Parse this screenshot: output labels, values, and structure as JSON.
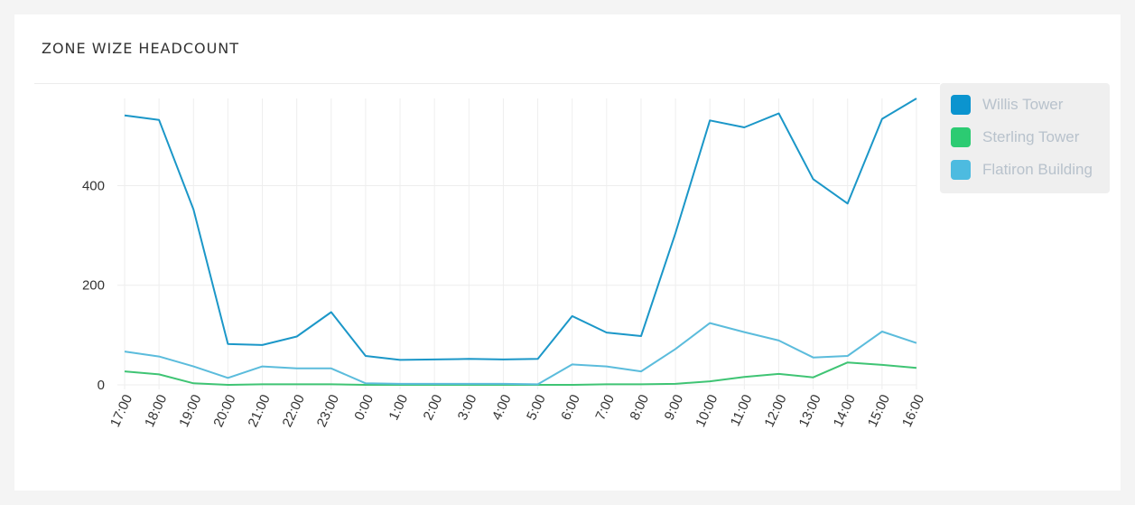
{
  "header": {
    "title": "ZONE WIZE HEADCOUNT"
  },
  "chart_data": {
    "type": "line",
    "title": "ZONE WIZE HEADCOUNT",
    "xlabel": "",
    "ylabel": "",
    "x": [
      "17:00",
      "18:00",
      "19:00",
      "20:00",
      "21:00",
      "22:00",
      "23:00",
      "0:00",
      "1:00",
      "2:00",
      "3:00",
      "4:00",
      "5:00",
      "6:00",
      "7:00",
      "8:00",
      "9:00",
      "10:00",
      "11:00",
      "12:00",
      "13:00",
      "14:00",
      "15:00",
      "16:00"
    ],
    "yticks": [
      "0",
      "200",
      "400"
    ],
    "ylim": [
      0,
      575
    ],
    "grid": true,
    "legend_position": "right",
    "series": [
      {
        "name": "Willis Tower",
        "color": "#1b97c8",
        "values": [
          541,
          532,
          352,
          82,
          80,
          97,
          146,
          58,
          50,
          51,
          52,
          51,
          52,
          138,
          105,
          98,
          305,
          531,
          517,
          545,
          413,
          364,
          534,
          575
        ]
      },
      {
        "name": "Sterling Tower",
        "color": "#3fc474",
        "values": [
          27,
          21,
          3,
          0,
          1,
          1,
          1,
          0,
          0,
          0,
          0,
          0,
          0,
          0,
          1,
          1,
          2,
          7,
          16,
          22,
          15,
          45,
          40,
          34
        ]
      },
      {
        "name": "Flatiron Building",
        "color": "#5bbcdc",
        "values": [
          67,
          57,
          37,
          14,
          37,
          33,
          33,
          3,
          2,
          2,
          2,
          2,
          1,
          41,
          37,
          27,
          72,
          124,
          106,
          89,
          55,
          58,
          107,
          84
        ]
      }
    ]
  },
  "legend_colors": [
    "#0b94cf",
    "#2ccb72",
    "#4dbbe0"
  ]
}
